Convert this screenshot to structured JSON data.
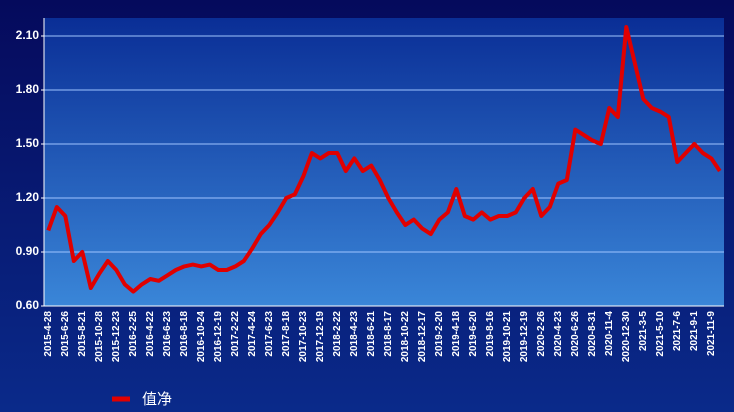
{
  "chart_data": {
    "type": "line",
    "categories": [
      "2015-4-28",
      null,
      "2015-6-26",
      null,
      "2015-8-21",
      null,
      "2015-10-28",
      null,
      "2015-12-23",
      null,
      "2016-2-25",
      null,
      "2016-4-22",
      null,
      "2016-6-23",
      null,
      "2016-8-18",
      null,
      "2016-10-24",
      null,
      "2016-12-19",
      null,
      "2017-2-22",
      null,
      "2017-4-24",
      null,
      "2017-6-23",
      null,
      "2017-8-18",
      null,
      "2017-10-23",
      null,
      "2017-12-19",
      null,
      "2018-2-22",
      null,
      "2018-4-23",
      null,
      "2018-6-21",
      null,
      "2018-8-17",
      null,
      "2018-10-22",
      null,
      "2018-12-17",
      null,
      "2019-2-20",
      null,
      "2019-4-18",
      null,
      "2019-6-20",
      null,
      "2019-8-16",
      null,
      "2019-10-21",
      null,
      "2019-12-19",
      null,
      "2020-2-26",
      null,
      "2020-4-23",
      null,
      "2020-6-26",
      null,
      "2020-8-31",
      null,
      "2020-11-4",
      null,
      "2020-12-30",
      null,
      "2021-3-5",
      null,
      "2021-5-10",
      null,
      "2021-7-6",
      null,
      "2021-9-1",
      null,
      "2021-11-9",
      null
    ],
    "series": [
      {
        "name": "值净",
        "color": "#e00000",
        "values": [
          1.02,
          1.15,
          1.1,
          0.85,
          0.9,
          0.7,
          0.78,
          0.85,
          0.8,
          0.72,
          0.68,
          0.72,
          0.75,
          0.74,
          0.77,
          0.8,
          0.82,
          0.83,
          0.82,
          0.83,
          0.8,
          0.8,
          0.82,
          0.85,
          0.92,
          1.0,
          1.05,
          1.12,
          1.2,
          1.22,
          1.32,
          1.45,
          1.42,
          1.45,
          1.45,
          1.35,
          1.42,
          1.35,
          1.38,
          1.3,
          1.2,
          1.12,
          1.05,
          1.08,
          1.03,
          1.0,
          1.08,
          1.12,
          1.25,
          1.1,
          1.08,
          1.12,
          1.08,
          1.1,
          1.1,
          1.12,
          1.2,
          1.25,
          1.1,
          1.15,
          1.28,
          1.3,
          1.58,
          1.55,
          1.52,
          1.5,
          1.7,
          1.65,
          2.15,
          1.95,
          1.75,
          1.7,
          1.68,
          1.65,
          1.4,
          1.45,
          1.5,
          1.45,
          1.42,
          1.35
        ]
      }
    ],
    "ylim": [
      0.6,
      2.2
    ],
    "yticks": [
      {
        "value": 0.6,
        "label": "0.60"
      },
      {
        "value": 0.9,
        "label": "0.90"
      },
      {
        "value": 1.2,
        "label": "1.20"
      },
      {
        "value": 1.5,
        "label": "1.50"
      },
      {
        "value": 1.8,
        "label": "1.80"
      },
      {
        "value": 2.1,
        "label": "2.10"
      }
    ],
    "grid": true
  }
}
